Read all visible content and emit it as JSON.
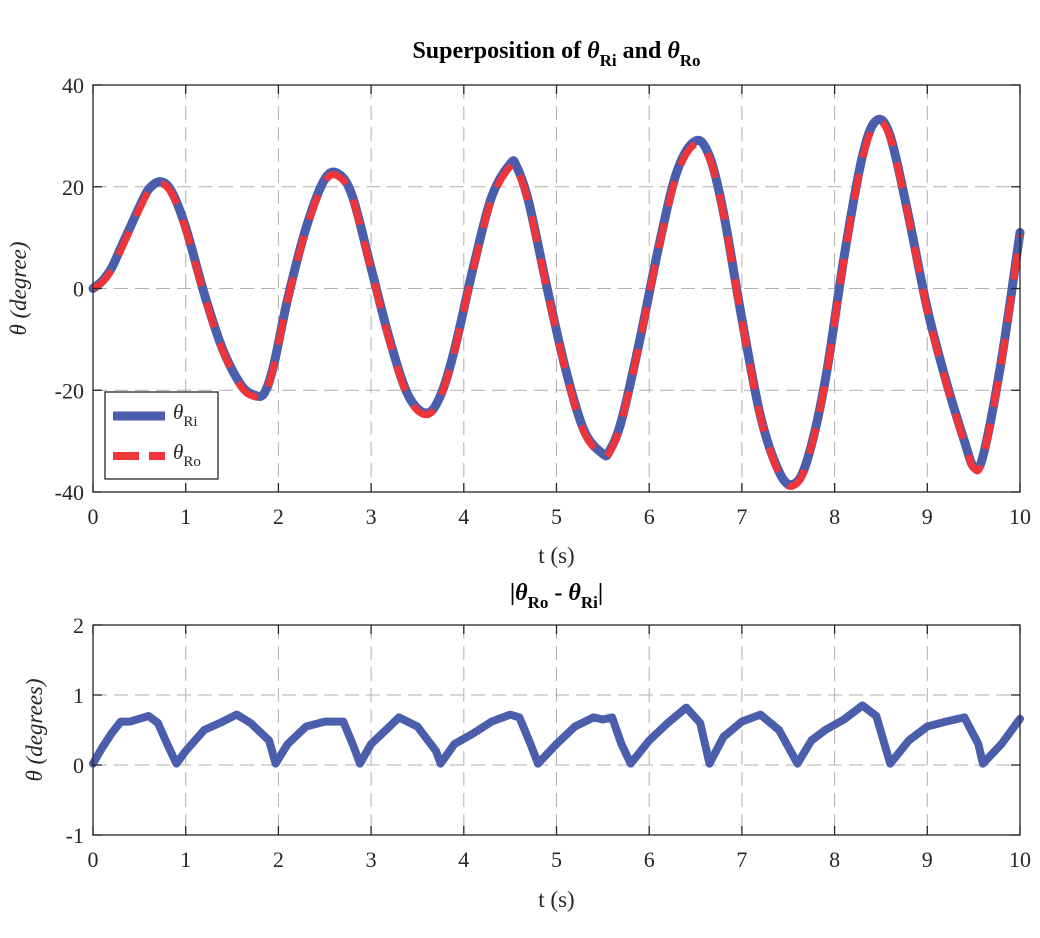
{
  "chart_data": [
    {
      "type": "line",
      "title": "Superposition of θRi and θRo",
      "title_parts": {
        "prefix": "Superposition of ",
        "sym1": "θ",
        "sub1": "Ri",
        "mid": " and ",
        "sym2": "θ",
        "sub2": "Ro"
      },
      "xlabel": "t (s)",
      "ylabel": "θ (degree)",
      "xlim": [
        0,
        10
      ],
      "ylim": [
        -40,
        40
      ],
      "xticks": [
        "0",
        "1",
        "2",
        "3",
        "4",
        "5",
        "6",
        "7",
        "8",
        "9",
        "10"
      ],
      "yticks": [
        "-40",
        "-20",
        "0",
        "20",
        "40"
      ],
      "grid": true,
      "legend_position": "bottom-left",
      "colors": {
        "theta_Ri": "#4a5eab",
        "theta_Ro": "#ef3539"
      },
      "series": [
        {
          "name": "θRi",
          "legend_sym": "θ",
          "legend_sub": "Ri",
          "style": "solid",
          "x": [
            0,
            0.1,
            0.2,
            0.3,
            0.4,
            0.5,
            0.6,
            0.73,
            0.85,
            1.0,
            1.2,
            1.4,
            1.6,
            1.75,
            1.85,
            1.95,
            2.1,
            2.3,
            2.5,
            2.65,
            2.8,
            3.0,
            3.2,
            3.4,
            3.6,
            3.75,
            3.9,
            4.1,
            4.3,
            4.5,
            4.57,
            4.7,
            4.9,
            5.1,
            5.3,
            5.5,
            5.57,
            5.7,
            5.9,
            6.1,
            6.3,
            6.5,
            6.65,
            6.8,
            7.0,
            7.2,
            7.4,
            7.55,
            7.7,
            7.9,
            8.1,
            8.3,
            8.45,
            8.6,
            8.8,
            9.0,
            9.2,
            9.4,
            9.5,
            9.6,
            9.8,
            10.0
          ],
          "y": [
            0,
            1.5,
            4,
            8,
            12,
            16,
            19.5,
            21,
            19,
            12,
            -1,
            -12,
            -19,
            -21,
            -20.5,
            -15,
            -2,
            12,
            21.5,
            22.5,
            18,
            4,
            -10,
            -21,
            -24.5,
            -21,
            -12,
            4,
            18,
            24.5,
            24,
            17,
            0,
            -16,
            -28,
            -32.5,
            -32,
            -26,
            -10,
            8,
            23,
            29,
            26,
            15,
            -6,
            -25,
            -36,
            -38.5,
            -34,
            -18,
            6,
            26,
            33,
            30,
            14,
            -4,
            -18,
            -30,
            -35,
            -33,
            -14,
            11
          ]
        },
        {
          "name": "θRo",
          "legend_sym": "θ",
          "legend_sub": "Ro",
          "style": "dashed",
          "x": [
            0,
            0.1,
            0.2,
            0.3,
            0.4,
            0.5,
            0.6,
            0.73,
            0.85,
            1.0,
            1.2,
            1.4,
            1.6,
            1.75,
            1.85,
            1.95,
            2.1,
            2.3,
            2.5,
            2.65,
            2.8,
            3.0,
            3.2,
            3.4,
            3.6,
            3.75,
            3.9,
            4.1,
            4.3,
            4.5,
            4.57,
            4.7,
            4.9,
            5.1,
            5.3,
            5.5,
            5.57,
            5.7,
            5.9,
            6.1,
            6.3,
            6.5,
            6.65,
            6.8,
            7.0,
            7.2,
            7.4,
            7.55,
            7.7,
            7.9,
            8.1,
            8.3,
            8.45,
            8.6,
            8.8,
            9.0,
            9.2,
            9.4,
            9.5,
            9.6,
            9.8,
            10.0
          ],
          "y": [
            0,
            1.2,
            3.6,
            7.5,
            11.5,
            15.5,
            19,
            20.6,
            18.6,
            11.6,
            -1.4,
            -12.3,
            -19.4,
            -21.3,
            -20.8,
            -15.3,
            -2.3,
            11.6,
            21,
            22,
            17.6,
            3.6,
            -10.4,
            -21.4,
            -24.8,
            -21.3,
            -12.3,
            3.6,
            17.5,
            24,
            23.5,
            16.6,
            -0.4,
            -16.4,
            -28.4,
            -32.8,
            -32.3,
            -26.3,
            -10.4,
            7.6,
            22.4,
            28.4,
            25.5,
            14.6,
            -6.4,
            -25.3,
            -36.4,
            -38.8,
            -34.3,
            -18.4,
            5.5,
            25.4,
            32.4,
            29.6,
            13.6,
            -4.4,
            -18.4,
            -30.4,
            -35.3,
            -33.4,
            -14.5,
            10.5
          ]
        }
      ]
    },
    {
      "type": "line",
      "title": "|θRo - θRi|",
      "title_parts": {
        "prefix": "|",
        "sym1": "θ",
        "sub1": "Ro",
        "mid": " - ",
        "sym2": "θ",
        "sub2": "Ri",
        "suffix": "|"
      },
      "xlabel": "t (s)",
      "ylabel": "θ (degrees)",
      "xlim": [
        0,
        10
      ],
      "ylim": [
        -1,
        2
      ],
      "xticks": [
        "0",
        "1",
        "2",
        "3",
        "4",
        "5",
        "6",
        "7",
        "8",
        "9",
        "10"
      ],
      "yticks": [
        "-1",
        "0",
        "1",
        "2"
      ],
      "grid": true,
      "colors": {
        "diff": "#4a5eab"
      },
      "series": [
        {
          "style": "solid",
          "x": [
            0,
            0.1,
            0.2,
            0.3,
            0.4,
            0.5,
            0.6,
            0.7,
            0.8,
            0.9,
            1.0,
            1.2,
            1.4,
            1.55,
            1.7,
            1.9,
            1.97,
            2.1,
            2.3,
            2.5,
            2.7,
            2.8,
            2.88,
            3.0,
            3.2,
            3.3,
            3.5,
            3.7,
            3.75,
            3.9,
            4.1,
            4.3,
            4.5,
            4.6,
            4.72,
            4.8,
            5.0,
            5.2,
            5.4,
            5.5,
            5.6,
            5.7,
            5.8,
            6.0,
            6.2,
            6.4,
            6.55,
            6.65,
            6.8,
            7.0,
            7.2,
            7.4,
            7.6,
            7.75,
            7.9,
            8.1,
            8.3,
            8.45,
            8.6,
            8.8,
            9.0,
            9.2,
            9.4,
            9.55,
            9.6,
            9.8,
            10.0
          ],
          "y": [
            0.02,
            0.25,
            0.45,
            0.62,
            0.62,
            0.66,
            0.7,
            0.6,
            0.3,
            0.02,
            0.2,
            0.5,
            0.62,
            0.72,
            0.6,
            0.35,
            0.02,
            0.3,
            0.55,
            0.62,
            0.62,
            0.3,
            0.02,
            0.3,
            0.55,
            0.68,
            0.55,
            0.2,
            0.02,
            0.3,
            0.45,
            0.62,
            0.72,
            0.68,
            0.3,
            0.02,
            0.3,
            0.55,
            0.68,
            0.65,
            0.68,
            0.3,
            0.02,
            0.35,
            0.6,
            0.82,
            0.6,
            0.02,
            0.4,
            0.62,
            0.72,
            0.5,
            0.02,
            0.35,
            0.5,
            0.65,
            0.85,
            0.7,
            0.02,
            0.35,
            0.55,
            0.62,
            0.68,
            0.3,
            0.02,
            0.3,
            0.66
          ]
        }
      ]
    }
  ]
}
